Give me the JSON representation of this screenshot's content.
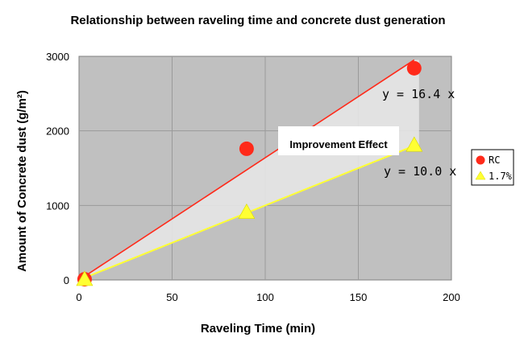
{
  "chart_data": {
    "type": "scatter",
    "title": "Relationship between raveling time and concrete dust generation",
    "xlabel": "Raveling Time (min)",
    "ylabel": "Amount of Concrete dust (g/m²)",
    "xlim": [
      0,
      200
    ],
    "ylim": [
      0,
      3000
    ],
    "x_ticks": [
      "0",
      "50",
      "100",
      "150",
      "200"
    ],
    "y_ticks": [
      "0",
      "1000",
      "2000",
      "3000"
    ],
    "grid": true,
    "legend_position": "right",
    "series": [
      {
        "name": "RC",
        "marker": "circle",
        "color": "#ff2a1a",
        "points": [
          [
            3,
            10
          ],
          [
            90,
            1760
          ],
          [
            180,
            2840
          ]
        ],
        "trendline": {
          "label": "y = 16.4 x",
          "slope": 16.4
        }
      },
      {
        "name": "1.7%",
        "marker": "triangle",
        "color": "#ffff33",
        "points": [
          [
            3,
            0
          ],
          [
            90,
            900
          ],
          [
            180,
            1800
          ]
        ],
        "trendline": {
          "label": "y = 10.0 x",
          "slope": 10.0
        }
      }
    ],
    "annotations": [
      {
        "text": "Improvement Effect"
      }
    ]
  }
}
